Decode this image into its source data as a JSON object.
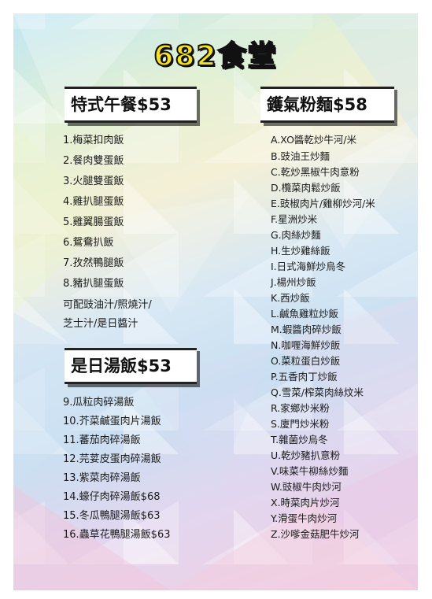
{
  "title": "682食堂",
  "sections": {
    "set_lunch": {
      "header": "特式午餐$53",
      "items": [
        "1.梅菜扣肉飯",
        "2.餐肉雙蛋飯",
        "3.火腿雙蛋飯",
        "4.雞扒腿蛋飯",
        "5.雞翼腸蛋飯",
        "6.鴛鴦扒飯",
        "7.孜然鴨腿飯",
        "8.豬扒腿蛋飯"
      ],
      "note_line1": "可配豉油汁/照燒汁/",
      "note_line2": "芝士汁/是日醬汁"
    },
    "soup_rice": {
      "header": "是日湯飯$53",
      "items": [
        "9.瓜粒肉碎湯飯",
        "10.芥菜鹹蛋肉片湯飯",
        "11.蕃茄肉碎湯飯",
        "12.芫荽皮蛋肉碎湯飯",
        "13.紫菜肉碎湯飯",
        "14.蠔仔肉碎湯飯$68",
        "15.冬瓜鴨腿湯飯$63",
        "16.蟲草花鴨腿湯飯$63"
      ]
    },
    "wok_noodles": {
      "header": "鑊氣粉麵$58",
      "items": [
        "A.XO醬乾炒牛河/米",
        "B.豉油王炒麵",
        "C.乾炒黑椒牛肉意粉",
        "D.欖菜肉鬆炒飯",
        "E.豉椒肉片/雞柳炒河/米",
        "F.星洲炒米",
        "G.肉絲炒麵",
        "H.生炒雞絲飯",
        "I.日式海鮮炒烏冬",
        "J.楊州炒飯",
        "K.西炒飯",
        "L.鹹魚雞粒炒飯",
        "M.蝦醬肉碎炒飯",
        "N.咖喱海鮮炒飯",
        "O.菜粒蛋白炒飯",
        "P.五香肉丁炒飯",
        "Q.雪菜/榨菜肉絲炆米",
        "R.家鄉炒米粉",
        "S.廈門炒米粉",
        "T.雜菌炒烏冬",
        "U.乾炒豬扒意粉",
        "V.味菜牛柳絲炒麵",
        "W.豉椒牛肉炒河",
        "X.時菜肉片炒河",
        "Y.滑蛋牛肉炒河",
        "Z.沙嗲金菇肥牛炒河"
      ]
    }
  },
  "colors": {
    "title_fill": "#f6e020",
    "title_stroke": "#111111",
    "text": "#1a1a1a"
  }
}
